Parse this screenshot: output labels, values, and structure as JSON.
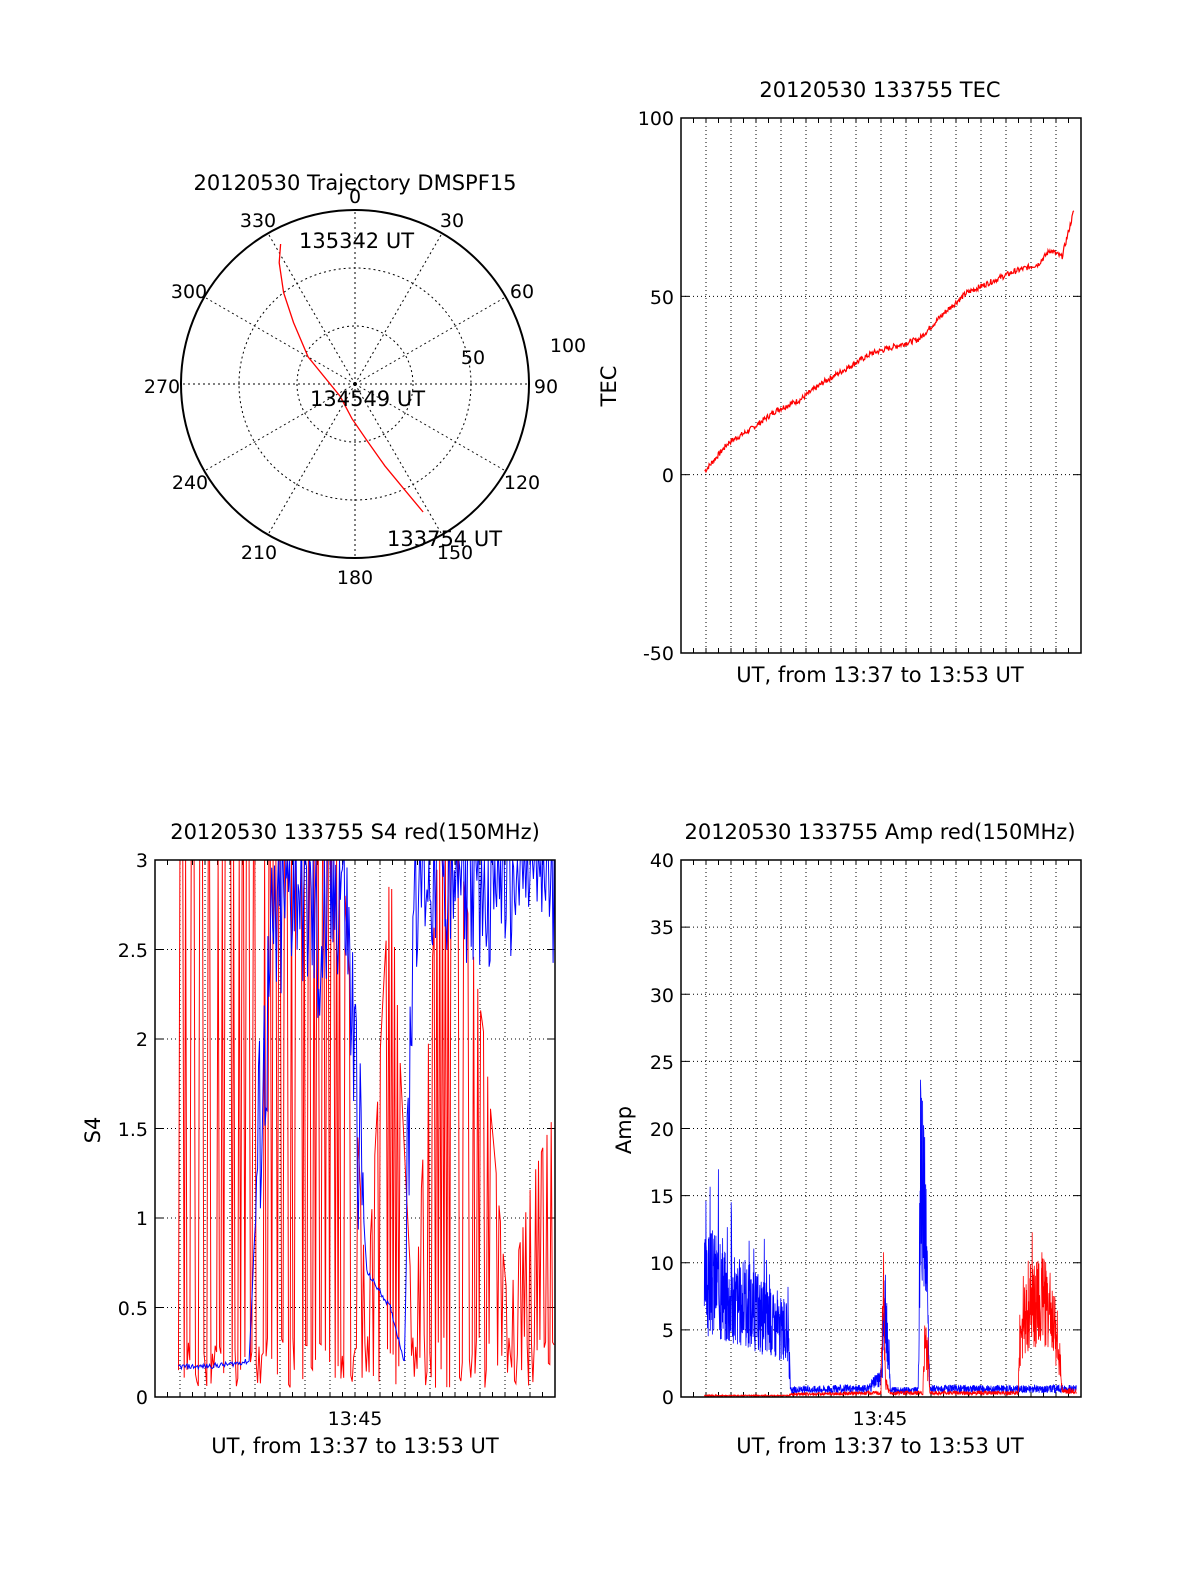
{
  "colors": {
    "red": "#ff0000",
    "blue": "#0000ff",
    "axis": "#000000",
    "grid": "#000000"
  },
  "chart_data": [
    {
      "type": "polar",
      "title": "20120530 Trajectory DMSPF15",
      "angle_ticks": [
        "0",
        "30",
        "60",
        "90",
        "120",
        "150",
        "180",
        "210",
        "240",
        "270",
        "300",
        "330"
      ],
      "radial_ticks": [
        "50",
        "100"
      ],
      "grid": true,
      "series": [
        {
          "color": "#ff0000",
          "points": [
            {
              "azimuth": 152,
              "elevation": 15
            },
            {
              "azimuth": 155,
              "elevation": 30
            },
            {
              "azimuth": 160,
              "elevation": 45
            },
            {
              "azimuth": 168,
              "elevation": 60
            },
            {
              "azimuth": 185,
              "elevation": 72
            },
            {
              "azimuth": 230,
              "elevation": 80
            },
            {
              "azimuth": 300,
              "elevation": 62
            },
            {
              "azimuth": 315,
              "elevation": 45
            },
            {
              "azimuth": 322,
              "elevation": 30
            },
            {
              "azimuth": 328,
              "elevation": 16
            },
            {
              "azimuth": 332,
              "elevation": 8
            }
          ]
        }
      ],
      "annotations": [
        "135342 UT",
        "134549 UT",
        "133754 UT"
      ]
    },
    {
      "type": "line",
      "title": "20120530 133755 TEC",
      "xlabel": "UT, from 13:37 to 13:53 UT",
      "ylabel": "TEC",
      "ylim": [
        -50,
        100
      ],
      "yticks": [
        "-50",
        "0",
        "50",
        "100"
      ],
      "grid": true,
      "x_minutes": [
        0,
        1,
        2,
        3,
        4,
        5,
        6,
        7,
        8,
        9,
        10,
        11,
        12,
        13,
        14,
        14.5,
        15,
        15.5
      ],
      "series": [
        {
          "color": "#ff0000",
          "values": [
            1,
            9,
            13,
            18,
            21,
            26,
            30,
            34,
            36,
            38,
            45,
            51,
            54,
            57,
            59,
            63,
            61,
            74
          ]
        }
      ]
    },
    {
      "type": "line",
      "title": "20120530 133755 S4 red(150MHz)",
      "xlabel": "UT, from 13:37 to 13:53 UT",
      "ylabel": "S4",
      "ylim": [
        0,
        3
      ],
      "yticks": [
        "0",
        "0.5",
        "1",
        "1.5",
        "2",
        "2.5",
        "3"
      ],
      "xticks": [
        "13:45"
      ],
      "grid": true,
      "series": [
        {
          "color": "#ff0000",
          "x_minutes": [
            0,
            1,
            2,
            3,
            4,
            5,
            6,
            7,
            8,
            9,
            10,
            11,
            12,
            13,
            14,
            15,
            16
          ],
          "values": [
            3,
            3,
            3,
            3,
            3,
            3,
            3,
            3,
            0.5,
            3,
            0.3,
            3,
            3,
            2,
            0.5,
            1.2,
            1.6
          ]
        },
        {
          "color": "#0000ff",
          "x_minutes": [
            0,
            1,
            2,
            3,
            3.4,
            4,
            5,
            6,
            7,
            8,
            9,
            9.6,
            10,
            11,
            12,
            13,
            14,
            15,
            16
          ],
          "values": [
            0.17,
            0.17,
            0.18,
            0.2,
            1.4,
            2.5,
            3,
            2.5,
            3,
            0.7,
            0.5,
            0.2,
            3,
            3,
            3,
            3,
            3,
            3,
            3
          ]
        }
      ]
    },
    {
      "type": "line",
      "title": "20120530 133755 Amp red(150MHz)",
      "xlabel": "UT, from 13:37 to 13:53 UT",
      "ylabel": "Amp",
      "ylim": [
        0,
        40
      ],
      "yticks": [
        "0",
        "5",
        "10",
        "15",
        "20",
        "25",
        "30",
        "35",
        "40"
      ],
      "xticks": [
        "13:45"
      ],
      "grid": true,
      "series": [
        {
          "color": "#0000ff",
          "x_minutes": [
            0,
            0.5,
            1,
            2,
            3,
            3.6,
            3.7,
            5,
            7,
            7.6,
            7.8,
            8,
            9.2,
            9.3,
            9.5,
            9.7,
            10,
            12,
            14,
            16
          ],
          "values": [
            12,
            13,
            11,
            10,
            8,
            7,
            0.5,
            0.6,
            0.6,
            1.5,
            10,
            0.5,
            0.5,
            24,
            20,
            0.6,
            0.6,
            0.6,
            0.6,
            0.6
          ]
        },
        {
          "color": "#ff0000",
          "x_minutes": [
            0,
            3.6,
            3.7,
            7.6,
            7.7,
            7.8,
            8,
            9.4,
            9.5,
            9.7,
            13.5,
            13.6,
            14,
            14.5,
            15,
            15.4,
            16
          ],
          "values": [
            0.1,
            0.1,
            0.2,
            0.3,
            12,
            1,
            0.3,
            0.3,
            7,
            0.3,
            0.3,
            7,
            10,
            11,
            9,
            0.5,
            0.4
          ]
        }
      ]
    }
  ]
}
